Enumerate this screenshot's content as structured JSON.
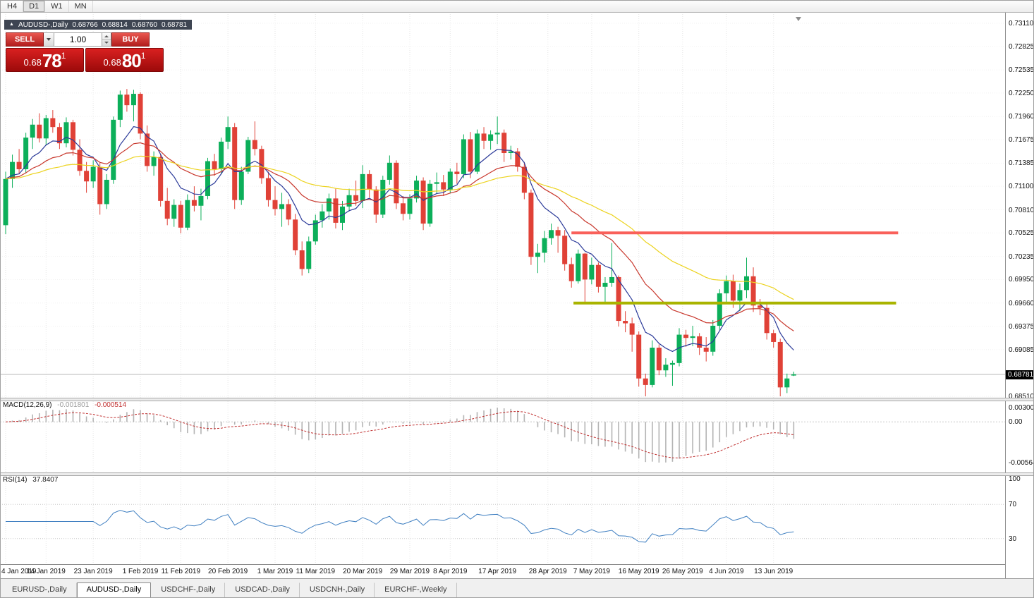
{
  "toolbar": {
    "timeframes": [
      {
        "label": "H4",
        "active": false
      },
      {
        "label": "D1",
        "active": true
      },
      {
        "label": "W1",
        "active": false
      },
      {
        "label": "MN",
        "active": false
      }
    ]
  },
  "chart_header": {
    "collapse_icon": "▲",
    "title": "AUDUSD-,Daily",
    "open": "0.68766",
    "high": "0.68814",
    "low": "0.68760",
    "close": "0.68781"
  },
  "trade_panel": {
    "sell_label": "SELL",
    "buy_label": "BUY",
    "volume": "1.00",
    "sell_price": {
      "prefix": "0.68",
      "big": "78",
      "sup": "1"
    },
    "buy_price": {
      "prefix": "0.68",
      "big": "80",
      "sup": "1"
    }
  },
  "indicators": {
    "macd": {
      "label": "MACD(12,26,9)",
      "value": "-0.001801",
      "signal_value": "-0.000514"
    },
    "rsi": {
      "label": "RSI(14)",
      "value": "37.8407"
    }
  },
  "axes": {
    "price_labels": [
      "0.73110",
      "0.72825",
      "0.72535",
      "0.72250",
      "0.71960",
      "0.71675",
      "0.71385",
      "0.71100",
      "0.70810",
      "0.70525",
      "0.70235",
      "0.69950",
      "0.69660",
      "0.69375",
      "0.69085",
      "0.68510"
    ],
    "current_price": "0.68781",
    "macd_labels": [
      "0.003003",
      "0.00",
      "-0.005648"
    ],
    "rsi_labels": [
      "100",
      "70",
      "30"
    ]
  },
  "tabs": [
    {
      "label": "EURUSD-,Daily",
      "active": false
    },
    {
      "label": "AUDUSD-,Daily",
      "active": true
    },
    {
      "label": "USDCHF-,Daily",
      "active": false
    },
    {
      "label": "USDCAD-,Daily",
      "active": false
    },
    {
      "label": "USDCNH-,Daily",
      "active": false
    },
    {
      "label": "EURCHF-,Weekly",
      "active": false
    }
  ],
  "chart_data": {
    "type": "candlestick",
    "symbol": "AUDUSD-",
    "timeframe": "Daily",
    "y_min": 0.6851,
    "y_max": 0.7311,
    "current_price": 0.68781,
    "time_ticks": [
      {
        "label": "4 Jan 2019",
        "index": 0
      },
      {
        "label": "14 Jan 2019",
        "index": 6
      },
      {
        "label": "23 Jan 2019",
        "index": 13
      },
      {
        "label": "1 Feb 2019",
        "index": 20
      },
      {
        "label": "11 Feb 2019",
        "index": 26
      },
      {
        "label": "20 Feb 2019",
        "index": 33
      },
      {
        "label": "1 Mar 2019",
        "index": 40
      },
      {
        "label": "11 Mar 2019",
        "index": 46
      },
      {
        "label": "20 Mar 2019",
        "index": 53
      },
      {
        "label": "29 Mar 2019",
        "index": 60
      },
      {
        "label": "8 Apr 2019",
        "index": 66
      },
      {
        "label": "17 Apr 2019",
        "index": 73
      },
      {
        "label": "28 Apr 2019",
        "index": 80.5
      },
      {
        "label": "7 May 2019",
        "index": 87
      },
      {
        "label": "16 May 2019",
        "index": 94
      },
      {
        "label": "26 May 2019",
        "index": 100.5
      },
      {
        "label": "4 Jun 2019",
        "index": 107
      },
      {
        "label": "13 Jun 2019",
        "index": 114
      }
    ],
    "candles": [
      [
        0.7062,
        0.7128,
        0.7051,
        0.7119
      ],
      [
        0.7119,
        0.7149,
        0.7108,
        0.714
      ],
      [
        0.714,
        0.7156,
        0.7125,
        0.7131
      ],
      [
        0.7131,
        0.7176,
        0.7126,
        0.717
      ],
      [
        0.717,
        0.7193,
        0.7156,
        0.7186
      ],
      [
        0.7186,
        0.72,
        0.7164,
        0.7169
      ],
      [
        0.7169,
        0.7198,
        0.7161,
        0.7194
      ],
      [
        0.7194,
        0.7204,
        0.7176,
        0.7183
      ],
      [
        0.7183,
        0.7188,
        0.7156,
        0.7163
      ],
      [
        0.7163,
        0.7195,
        0.7158,
        0.7189
      ],
      [
        0.7189,
        0.7192,
        0.7148,
        0.7155
      ],
      [
        0.7155,
        0.7168,
        0.7123,
        0.7129
      ],
      [
        0.7129,
        0.714,
        0.7102,
        0.7116
      ],
      [
        0.7116,
        0.7142,
        0.7108,
        0.7134
      ],
      [
        0.7134,
        0.7139,
        0.7075,
        0.7088
      ],
      [
        0.7088,
        0.7125,
        0.7082,
        0.7118
      ],
      [
        0.7118,
        0.7196,
        0.7113,
        0.7192
      ],
      [
        0.7192,
        0.7228,
        0.7183,
        0.7223
      ],
      [
        0.7223,
        0.723,
        0.7202,
        0.721
      ],
      [
        0.721,
        0.7229,
        0.719,
        0.7224
      ],
      [
        0.7224,
        0.7226,
        0.7168,
        0.7175
      ],
      [
        0.7175,
        0.7185,
        0.7128,
        0.7135
      ],
      [
        0.7135,
        0.7153,
        0.7123,
        0.7146
      ],
      [
        0.7146,
        0.715,
        0.7085,
        0.7092
      ],
      [
        0.7092,
        0.7108,
        0.7062,
        0.707
      ],
      [
        0.707,
        0.7094,
        0.706,
        0.7087
      ],
      [
        0.7087,
        0.7092,
        0.7052,
        0.7059
      ],
      [
        0.7059,
        0.71,
        0.7056,
        0.7093
      ],
      [
        0.7093,
        0.711,
        0.7079,
        0.7086
      ],
      [
        0.7086,
        0.7107,
        0.7068,
        0.7098
      ],
      [
        0.7098,
        0.7145,
        0.7094,
        0.7141
      ],
      [
        0.7141,
        0.715,
        0.7123,
        0.7131
      ],
      [
        0.7131,
        0.717,
        0.7126,
        0.7165
      ],
      [
        0.7165,
        0.7196,
        0.7156,
        0.7183
      ],
      [
        0.7183,
        0.7188,
        0.7082,
        0.7093
      ],
      [
        0.7093,
        0.7134,
        0.7087,
        0.7128
      ],
      [
        0.7128,
        0.7171,
        0.7125,
        0.7167
      ],
      [
        0.7167,
        0.719,
        0.7148,
        0.7156
      ],
      [
        0.7156,
        0.716,
        0.7113,
        0.712
      ],
      [
        0.712,
        0.7128,
        0.7085,
        0.7093
      ],
      [
        0.7093,
        0.711,
        0.7074,
        0.7082
      ],
      [
        0.7082,
        0.7102,
        0.706,
        0.7088
      ],
      [
        0.7088,
        0.7094,
        0.7062,
        0.7069
      ],
      [
        0.7069,
        0.7076,
        0.7025,
        0.7031
      ],
      [
        0.7031,
        0.7042,
        0.7,
        0.7008
      ],
      [
        0.7008,
        0.7048,
        0.7003,
        0.7042
      ],
      [
        0.7042,
        0.7075,
        0.7038,
        0.7068
      ],
      [
        0.7068,
        0.7088,
        0.7059,
        0.7079
      ],
      [
        0.7079,
        0.7101,
        0.7069,
        0.7095
      ],
      [
        0.7095,
        0.7107,
        0.7058,
        0.7065
      ],
      [
        0.7065,
        0.7092,
        0.7056,
        0.7085
      ],
      [
        0.7085,
        0.7107,
        0.7079,
        0.7099
      ],
      [
        0.7099,
        0.7117,
        0.7086,
        0.7092
      ],
      [
        0.7092,
        0.7136,
        0.7083,
        0.7125
      ],
      [
        0.7125,
        0.713,
        0.7096,
        0.7106
      ],
      [
        0.7106,
        0.711,
        0.7065,
        0.7075
      ],
      [
        0.7075,
        0.7123,
        0.7071,
        0.7118
      ],
      [
        0.7118,
        0.7148,
        0.7112,
        0.7139
      ],
      [
        0.7139,
        0.7142,
        0.7082,
        0.7089
      ],
      [
        0.7089,
        0.7098,
        0.7068,
        0.7076
      ],
      [
        0.7076,
        0.71,
        0.7069,
        0.7095
      ],
      [
        0.7095,
        0.7123,
        0.709,
        0.7117
      ],
      [
        0.7117,
        0.7121,
        0.7056,
        0.7064
      ],
      [
        0.7064,
        0.7118,
        0.706,
        0.7113
      ],
      [
        0.7113,
        0.7127,
        0.7101,
        0.7115
      ],
      [
        0.7115,
        0.7124,
        0.7098,
        0.7106
      ],
      [
        0.7106,
        0.7132,
        0.7101,
        0.7128
      ],
      [
        0.7128,
        0.7139,
        0.7113,
        0.7125
      ],
      [
        0.7125,
        0.7174,
        0.712,
        0.7168
      ],
      [
        0.7168,
        0.7177,
        0.712,
        0.7128
      ],
      [
        0.7128,
        0.718,
        0.7125,
        0.7175
      ],
      [
        0.7175,
        0.7183,
        0.7156,
        0.7166
      ],
      [
        0.7166,
        0.7179,
        0.7155,
        0.7174
      ],
      [
        0.7174,
        0.7196,
        0.7162,
        0.7176
      ],
      [
        0.7176,
        0.718,
        0.714,
        0.7151
      ],
      [
        0.7151,
        0.716,
        0.7143,
        0.7153
      ],
      [
        0.7153,
        0.7157,
        0.7128,
        0.7134
      ],
      [
        0.7134,
        0.714,
        0.7094,
        0.7102
      ],
      [
        0.7102,
        0.7106,
        0.7013,
        0.7023
      ],
      [
        0.7023,
        0.7039,
        0.7003,
        0.7028
      ],
      [
        0.7028,
        0.7055,
        0.7016,
        0.7046
      ],
      [
        0.7046,
        0.7064,
        0.7038,
        0.7056
      ],
      [
        0.7056,
        0.706,
        0.7028,
        0.7049
      ],
      [
        0.7049,
        0.7056,
        0.7006,
        0.7014
      ],
      [
        0.7014,
        0.7022,
        0.6985,
        0.6993
      ],
      [
        0.6993,
        0.7032,
        0.699,
        0.7027
      ],
      [
        0.7027,
        0.7028,
        0.6965,
        0.6995
      ],
      [
        0.6995,
        0.7022,
        0.6989,
        0.7013
      ],
      [
        0.7013,
        0.7016,
        0.6979,
        0.6986
      ],
      [
        0.6986,
        0.6998,
        0.6965,
        0.6991
      ],
      [
        0.6991,
        0.704,
        0.6986,
        0.6998
      ],
      [
        0.6998,
        0.7,
        0.6937,
        0.6944
      ],
      [
        0.6944,
        0.6956,
        0.693,
        0.6941
      ],
      [
        0.6941,
        0.6948,
        0.6906,
        0.6927
      ],
      [
        0.6927,
        0.6931,
        0.6863,
        0.6873
      ],
      [
        0.6873,
        0.6879,
        0.6851,
        0.6865
      ],
      [
        0.6865,
        0.692,
        0.6862,
        0.6911
      ],
      [
        0.6911,
        0.6915,
        0.6877,
        0.6883
      ],
      [
        0.6883,
        0.6898,
        0.6875,
        0.689
      ],
      [
        0.689,
        0.6895,
        0.6864,
        0.6892
      ],
      [
        0.6892,
        0.6935,
        0.6888,
        0.6927
      ],
      [
        0.6927,
        0.6933,
        0.6912,
        0.6923
      ],
      [
        0.6923,
        0.6938,
        0.6913,
        0.6925
      ],
      [
        0.6925,
        0.6929,
        0.6902,
        0.6911
      ],
      [
        0.6911,
        0.6924,
        0.6894,
        0.6906
      ],
      [
        0.6906,
        0.6945,
        0.6901,
        0.6938
      ],
      [
        0.6938,
        0.6983,
        0.6933,
        0.6978
      ],
      [
        0.6978,
        0.7,
        0.6965,
        0.6993
      ],
      [
        0.6993,
        0.7001,
        0.696,
        0.6969
      ],
      [
        0.6969,
        0.699,
        0.6956,
        0.6982
      ],
      [
        0.6982,
        0.7022,
        0.6972,
        0.6999
      ],
      [
        0.6999,
        0.701,
        0.6955,
        0.6963
      ],
      [
        0.6963,
        0.6971,
        0.6951,
        0.696
      ],
      [
        0.696,
        0.6966,
        0.6921,
        0.6929
      ],
      [
        0.6929,
        0.6933,
        0.6911,
        0.6918
      ],
      [
        0.6918,
        0.6922,
        0.6851,
        0.6862
      ],
      [
        0.6862,
        0.6879,
        0.6855,
        0.6873
      ],
      [
        0.68766,
        0.68814,
        0.6876,
        0.68781
      ]
    ],
    "moving_averages": [
      {
        "type": "ema",
        "period": 8,
        "color": "#2b3a99"
      },
      {
        "type": "ema",
        "period": 20,
        "color": "#c8372c"
      },
      {
        "type": "ema",
        "period": 45,
        "color": "#ecd31f"
      }
    ],
    "hlines": [
      {
        "price": 0.70525,
        "color": "#f9605a",
        "width": 4,
        "from_index": 84,
        "to_index": 132.5
      },
      {
        "price": 0.6966,
        "color": "#a9b400",
        "width": 4,
        "from_index": 84.3,
        "to_index": 132.2
      }
    ],
    "macd": {
      "fast": 12,
      "slow": 26,
      "signal": 9,
      "current_value": -0.001801,
      "current_signal": -0.000514,
      "histogram_color": "#b4b4b4",
      "signal_color": "#c03030"
    },
    "rsi": {
      "period": 14,
      "current_value": 37.8407,
      "color": "#3f7fc1",
      "levels": [
        70,
        30
      ]
    },
    "colors": {
      "bull": "#0caf5a",
      "bear": "#e04137",
      "grid": "#e6e6e6",
      "current_price_line": "#b8b8b8"
    }
  }
}
